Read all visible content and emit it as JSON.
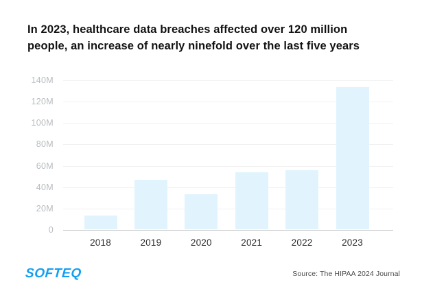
{
  "title": {
    "line1": "In 2023, healthcare data breaches affected over 120 million",
    "line2": "people, an increase of nearly ninefold over the last five years"
  },
  "chart_data": {
    "type": "bar",
    "title": "In 2023, healthcare data breaches affected over 120 million people, an increase of nearly ninefold over the last five years",
    "categories": [
      "2018",
      "2019",
      "2020",
      "2021",
      "2022",
      "2023"
    ],
    "values": [
      13,
      46,
      33,
      53,
      55,
      133
    ],
    "unit": "M",
    "unit_meaning": "millions of people affected",
    "xlabel": "",
    "ylabel": "",
    "ylim": [
      0,
      140
    ],
    "yticks": [
      {
        "label": "140M",
        "value": 140
      },
      {
        "label": "120M",
        "value": 120
      },
      {
        "label": "100M",
        "value": 100
      },
      {
        "label": "80M",
        "value": 80
      },
      {
        "label": "60M",
        "value": 60
      },
      {
        "label": "40M",
        "value": 40
      },
      {
        "label": "20M",
        "value": 20
      },
      {
        "label": "0",
        "value": 0
      }
    ],
    "grid": true,
    "legend": "none",
    "bar_color": "#e1f4fd"
  },
  "footer": {
    "logo_text": "SOFTEQ",
    "source_text": "Source: The HIPAA 2024 Journal"
  },
  "colors": {
    "bar": "#e1f4fd",
    "gridline": "#f1f1f1",
    "axis_line": "#c9c9c9",
    "ytick_text": "#b8bcc0",
    "xtick_text": "#2e2e2e",
    "title_text": "#121212",
    "logo_blue": "#14a0f2",
    "source_text": "#4a4a4a",
    "background": "#ffffff"
  }
}
